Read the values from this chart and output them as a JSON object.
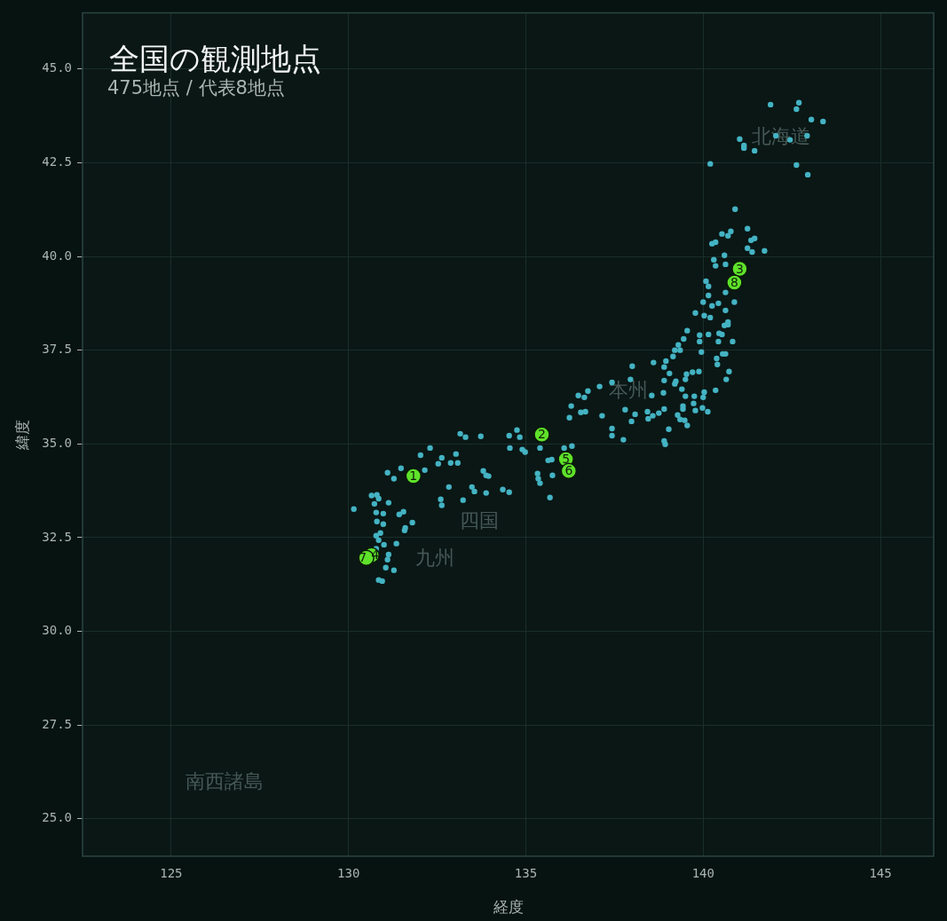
{
  "chart_data": {
    "type": "scatter",
    "title": "全国の観測地点",
    "subtitle": "475地点 / 代表8地点",
    "xlabel": "経度",
    "ylabel": "緯度",
    "xlim": [
      122.5,
      146.5
    ],
    "ylim": [
      24,
      46.5
    ],
    "xticks": [
      125,
      130,
      135,
      140,
      145
    ],
    "yticks": [
      {
        "value": 25,
        "label": "25.0"
      },
      27.5,
      {
        "value": 30,
        "label": "30.0"
      },
      32.5,
      {
        "value": 35,
        "label": "35.0"
      },
      37.5,
      {
        "value": 40,
        "label": "40.0"
      },
      42.5,
      {
        "value": 45,
        "label": "45.0"
      }
    ],
    "grid": true,
    "legend": false,
    "marker": "circle",
    "series": [
      {
        "color": "#44b3c3",
        "x": [
          141.9,
          142.7,
          142.63,
          143.05,
          143.38,
          141.03,
          141.15,
          141.15,
          141.45,
          142.05,
          142.45,
          142.93,
          140.2,
          142.63,
          142.95,
          140.9,
          140.53,
          140.7,
          140.78,
          140.25,
          140.35,
          141.25,
          141.45,
          141.35,
          141.73,
          141.25,
          141.38,
          140.6,
          140.3,
          140.35,
          140.63,
          140.08,
          140.15,
          140.15,
          140.63,
          140.0,
          140.25,
          140.43,
          140.88,
          139.78,
          140.03,
          140.2,
          140.63,
          140.7,
          140.7,
          140.6,
          139.55,
          139.45,
          139.9,
          140.15,
          140.45,
          140.53,
          139.9,
          140.43,
          140.83,
          139.3,
          139.2,
          139.35,
          139.95,
          140.55,
          140.63,
          139.15,
          138.6,
          138.95,
          138.9,
          138.0,
          140.38,
          140.4,
          140.73,
          139.05,
          139.7,
          139.88,
          139.53,
          138.9,
          139.5,
          140.65,
          139.23,
          139.2,
          137.95,
          137.43,
          137.08,
          136.75,
          136.48,
          136.65,
          136.28,
          136.55,
          136.68,
          136.23,
          137.15,
          137.8,
          138.08,
          137.98,
          138.43,
          138.58,
          138.45,
          138.75,
          138.9,
          138.55,
          138.88,
          139.4,
          139.5,
          139.75,
          140.0,
          140.03,
          140.35,
          139.73,
          139.43,
          139.43,
          139.78,
          139.98,
          140.13,
          139.28,
          139.35,
          139.48,
          139.55,
          139.03,
          137.43,
          137.43,
          137.75,
          138.9,
          138.93,
          135.4,
          136.08,
          136.3,
          133.15,
          133.3,
          133.73,
          134.53,
          134.75,
          134.83,
          134.55,
          134.9,
          134.98,
          132.3,
          132.03,
          132.63,
          132.53,
          133.03,
          132.88,
          133.08,
          132.15,
          131.48,
          131.1,
          131.28,
          133.8,
          133.88,
          133.95,
          132.83,
          133.48,
          133.55,
          133.88,
          134.35,
          134.53,
          132.6,
          132.63,
          133.23,
          135.63,
          135.73,
          135.33,
          135.35,
          135.4,
          135.75,
          135.68,
          130.15,
          130.65,
          130.8,
          130.85,
          130.73,
          131.13,
          130.78,
          130.98,
          131.43,
          131.55,
          130.8,
          130.98,
          131.8,
          131.6,
          131.58,
          130.9,
          130.78,
          130.85,
          131.0,
          131.35,
          130.78,
          131.13,
          131.1,
          131.05,
          131.28,
          130.85,
          130.95
        ],
        "values": [
          44.05,
          44.1,
          43.93,
          43.65,
          43.6,
          43.13,
          42.96,
          42.89,
          42.82,
          43.22,
          43.11,
          43.22,
          42.47,
          42.44,
          42.18,
          41.26,
          40.6,
          40.55,
          40.67,
          40.34,
          40.38,
          40.74,
          40.48,
          40.43,
          40.15,
          40.22,
          40.12,
          40.03,
          39.91,
          39.75,
          39.79,
          39.34,
          39.2,
          38.96,
          39.04,
          38.78,
          38.68,
          38.75,
          38.78,
          38.49,
          38.42,
          38.37,
          38.56,
          38.25,
          38.18,
          38.16,
          38.02,
          37.8,
          37.9,
          37.92,
          37.95,
          37.92,
          37.73,
          37.73,
          37.73,
          37.64,
          37.5,
          37.5,
          37.45,
          37.4,
          37.4,
          37.33,
          37.17,
          37.21,
          37.05,
          37.07,
          37.28,
          37.12,
          36.93,
          36.88,
          36.91,
          36.93,
          36.86,
          36.69,
          36.72,
          36.72,
          36.67,
          36.6,
          36.72,
          36.64,
          36.53,
          36.41,
          36.29,
          36.24,
          36.01,
          35.84,
          35.86,
          35.7,
          35.75,
          35.91,
          35.79,
          35.6,
          35.86,
          35.75,
          35.67,
          35.82,
          35.93,
          36.29,
          36.36,
          36.46,
          36.27,
          36.27,
          36.24,
          36.38,
          36.43,
          36.08,
          36.01,
          35.93,
          35.89,
          35.96,
          35.86,
          35.77,
          35.65,
          35.63,
          35.49,
          35.39,
          35.41,
          35.22,
          35.11,
          35.08,
          34.99,
          34.89,
          34.89,
          34.94,
          35.27,
          35.18,
          35.2,
          35.22,
          35.37,
          35.18,
          34.89,
          34.85,
          34.78,
          34.89,
          34.7,
          34.63,
          34.47,
          34.73,
          34.49,
          34.49,
          34.3,
          34.35,
          34.23,
          34.07,
          34.28,
          34.16,
          34.14,
          33.85,
          33.85,
          33.73,
          33.69,
          33.78,
          33.71,
          33.52,
          33.36,
          33.5,
          34.56,
          34.58,
          34.21,
          34.07,
          33.95,
          34.16,
          33.57,
          33.26,
          33.62,
          33.64,
          33.54,
          33.4,
          33.43,
          33.17,
          33.14,
          33.12,
          33.19,
          32.93,
          32.86,
          32.9,
          32.76,
          32.69,
          32.62,
          32.55,
          32.43,
          32.31,
          32.34,
          32.2,
          32.05,
          31.91,
          31.7,
          31.63,
          31.37,
          31.34
        ]
      },
      {
        "color": "#5fe22a",
        "x": [
          131.83,
          135.45,
          141.03,
          130.65,
          136.13,
          136.21,
          130.5,
          140.88
        ],
        "values": [
          34.14,
          35.25,
          39.67,
          32.03,
          34.59,
          34.28,
          31.96,
          39.3
        ]
      }
    ],
    "annotations": [
      {
        "text": "1",
        "x": 131.83,
        "y": 34.14
      },
      {
        "text": "2",
        "x": 135.45,
        "y": 35.25
      },
      {
        "text": "3",
        "x": 141.03,
        "y": 39.67
      },
      {
        "text": "4",
        "x": 130.65,
        "y": 32.03
      },
      {
        "text": "5",
        "x": 136.13,
        "y": 34.59
      },
      {
        "text": "6",
        "x": 136.21,
        "y": 34.28
      },
      {
        "text": "7",
        "x": 130.5,
        "y": 31.96
      },
      {
        "text": "8",
        "x": 140.88,
        "y": 39.3
      },
      "北海道",
      "本州",
      "四国",
      "九州",
      "南西諸島"
    ]
  }
}
